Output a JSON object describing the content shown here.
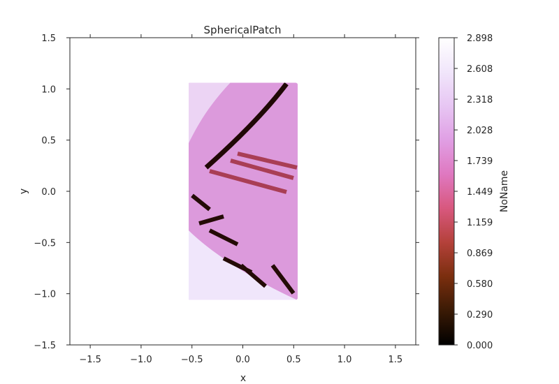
{
  "chart_data": {
    "type": "heatmap",
    "title": "SphericalPatch",
    "xlabel": "x",
    "ylabel": "y",
    "xlim": [
      -1.7,
      1.7
    ],
    "ylim": [
      -1.5,
      1.5
    ],
    "x_ticks": [
      -1.5,
      -1.0,
      -0.5,
      0.0,
      0.5,
      1.0,
      1.5
    ],
    "x_tick_labels": [
      "−1.5",
      "−1.0",
      "−0.5",
      "0.0",
      "0.5",
      "1.0",
      "1.5"
    ],
    "y_ticks": [
      -1.5,
      -1.0,
      -0.5,
      0.0,
      0.5,
      1.0,
      1.5
    ],
    "y_tick_labels": [
      "−1.5",
      "−1.0",
      "−0.5",
      "0.0",
      "0.5",
      "1.0",
      "1.5"
    ],
    "grid": false,
    "image_extent": {
      "x": [
        -0.54,
        0.54
      ],
      "y": [
        -1.06,
        1.06
      ]
    },
    "colorbar": {
      "label": "NoName",
      "range": [
        0.0,
        2.898
      ],
      "ticks": [
        0.0,
        0.29,
        0.58,
        0.869,
        1.159,
        1.449,
        1.739,
        2.028,
        2.318,
        2.608,
        2.898
      ],
      "tick_labels": [
        "0.000",
        "0.290",
        "0.580",
        "0.869",
        "1.159",
        "1.449",
        "1.739",
        "2.028",
        "2.318",
        "2.608",
        "2.898"
      ],
      "colormap": [
        "#000000",
        "#3a1a05",
        "#7a2e0e",
        "#b4413a",
        "#d8587e",
        "#df78c0",
        "#e09fe4",
        "#e7c6f3",
        "#f1e6fb",
        "#ffffff"
      ]
    }
  }
}
